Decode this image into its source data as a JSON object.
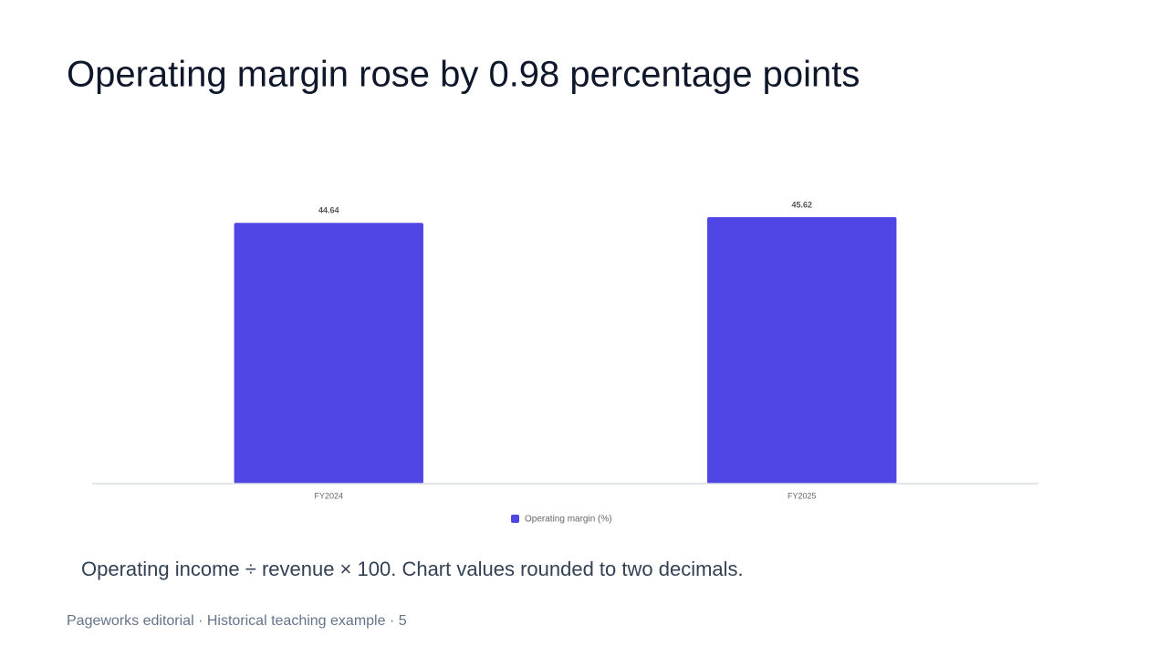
{
  "chart_data": {
    "type": "bar",
    "title": "Operating margin rose by 0.98 percentage points",
    "categories": [
      "FY2024",
      "FY2025"
    ],
    "series": [
      {
        "name": "Operating margin (%)",
        "color": "#4f46e5",
        "values": [
          44.64,
          45.62
        ]
      }
    ],
    "ylim": [
      0,
      50
    ]
  },
  "caption": "Operating income ÷ revenue × 100. Chart values rounded to two decimals.",
  "footer": "Pageworks editorial · Historical teaching example · 5"
}
